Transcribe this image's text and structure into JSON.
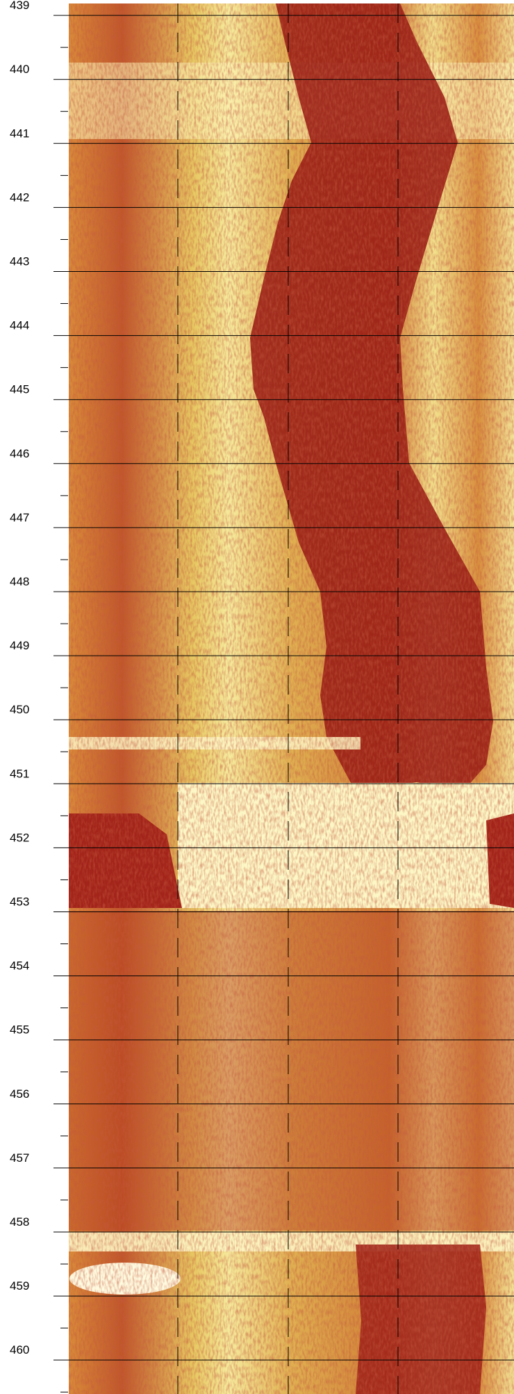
{
  "chart_data": {
    "type": "image-log",
    "ylim": [
      438.76,
      460.53
    ],
    "yticks": [
      439,
      440,
      441,
      442,
      443,
      444,
      445,
      446,
      447,
      448,
      449,
      450,
      451,
      452,
      453,
      454,
      455,
      456,
      457,
      458,
      459,
      460
    ],
    "minor_yticks": [
      439.5,
      440.5,
      441.5,
      442.5,
      443.5,
      444.5,
      445.5,
      446.5,
      447.5,
      448.5,
      449.5,
      450.5,
      451.5,
      452.5,
      453.5,
      454.5,
      455.5,
      456.5,
      457.5,
      458.5,
      459.5,
      460.5
    ],
    "grid": true
  }
}
